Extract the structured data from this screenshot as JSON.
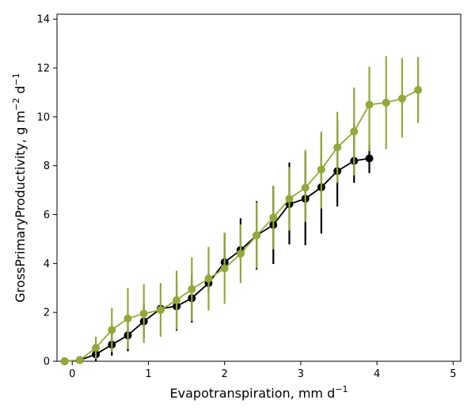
{
  "chart_data": {
    "type": "line",
    "xlabel": {
      "text": "Evapotranspiration,  mm d",
      "sup": "−1"
    },
    "ylabel": {
      "text": "GrossPrimaryProductivity,  g m",
      "sup1": "−2",
      "mid": " d",
      "sup2": "−1"
    },
    "xlim": [
      -0.2,
      5.1
    ],
    "ylim": [
      0,
      14.2
    ],
    "xticks": [
      0,
      1,
      2,
      3,
      4,
      5
    ],
    "xtick_labels": [
      "0",
      "1",
      "2",
      "3",
      "4",
      "5"
    ],
    "yticks": [
      0,
      2,
      4,
      6,
      8,
      10,
      12,
      14
    ],
    "ytick_labels": [
      "0",
      "2",
      "4",
      "6",
      "8",
      "10",
      "12",
      "14"
    ],
    "grid": false,
    "series": [
      {
        "color": "#000000",
        "x": [
          -0.1,
          0.1,
          0.31,
          0.52,
          0.73,
          0.94,
          1.16,
          1.37,
          1.57,
          1.79,
          2.0,
          2.21,
          2.42,
          2.64,
          2.85,
          3.06,
          3.27,
          3.48,
          3.7,
          3.9
        ],
        "y": [
          0.0,
          0.05,
          0.28,
          0.68,
          1.06,
          1.63,
          2.15,
          2.25,
          2.58,
          3.2,
          4.05,
          4.55,
          5.15,
          5.58,
          6.43,
          6.65,
          7.12,
          7.78,
          8.2,
          8.3
        ],
        "err_low": [
          0.0,
          0.0,
          0.28,
          0.45,
          0.65,
          0.7,
          0.1,
          1.0,
          1.0,
          0.4,
          0.4,
          0.4,
          1.4,
          1.6,
          1.65,
          1.9,
          1.9,
          1.45,
          0.9,
          0.6
        ],
        "err_high": [
          0.0,
          0.0,
          0.35,
          0.5,
          0.7,
          0.7,
          0.1,
          1.0,
          1.0,
          0.4,
          1.2,
          1.3,
          1.4,
          1.6,
          1.7,
          1.9,
          2.2,
          2.1,
          1.5,
          0.6
        ]
      },
      {
        "color": "#93a83a",
        "x": [
          -0.1,
          0.1,
          0.31,
          0.52,
          0.73,
          0.94,
          1.16,
          1.37,
          1.57,
          1.79,
          2.0,
          2.21,
          2.42,
          2.64,
          2.85,
          3.06,
          3.27,
          3.48,
          3.7,
          3.9,
          4.12,
          4.33,
          4.54
        ],
        "y": [
          0.0,
          0.05,
          0.55,
          1.28,
          1.75,
          1.95,
          2.1,
          2.5,
          2.95,
          3.38,
          3.8,
          4.4,
          5.15,
          5.88,
          6.65,
          7.1,
          7.85,
          8.75,
          9.4,
          10.5,
          10.58,
          10.75,
          11.1
        ],
        "err_low": [
          0.0,
          0.05,
          0.45,
          0.9,
          1.25,
          1.2,
          1.1,
          1.2,
          1.3,
          1.3,
          1.45,
          1.2,
          1.35,
          1.3,
          1.3,
          1.4,
          1.6,
          1.45,
          1.8,
          1.9,
          1.9,
          1.6,
          1.35
        ],
        "err_high": [
          0.0,
          0.05,
          0.45,
          0.9,
          1.25,
          1.2,
          1.1,
          1.2,
          1.3,
          1.3,
          1.45,
          1.2,
          1.35,
          1.3,
          1.3,
          1.55,
          1.55,
          1.45,
          1.8,
          1.55,
          1.9,
          1.65,
          1.35
        ]
      }
    ]
  }
}
